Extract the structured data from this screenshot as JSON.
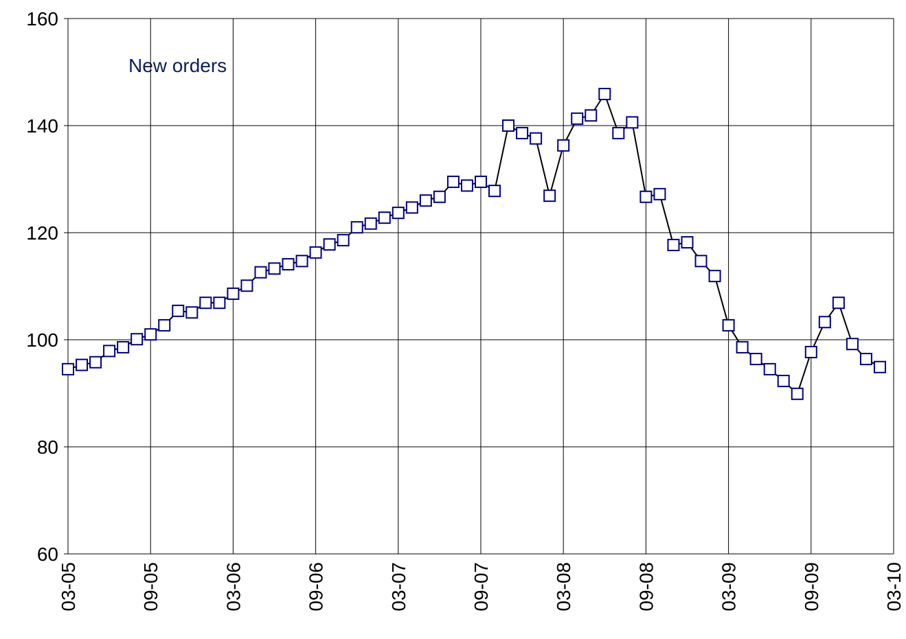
{
  "chart_data": {
    "type": "line",
    "annotation": "New orders",
    "categories": [
      "03-05",
      null,
      null,
      null,
      null,
      null,
      "09-05",
      null,
      null,
      null,
      null,
      null,
      "03-06",
      null,
      null,
      null,
      null,
      null,
      "09-06",
      null,
      null,
      null,
      null,
      null,
      "03-07",
      null,
      null,
      null,
      null,
      null,
      "09-07",
      null,
      null,
      null,
      null,
      null,
      "03-08",
      null,
      null,
      null,
      null,
      null,
      "09-08",
      null,
      null,
      null,
      null,
      null,
      "03-09",
      null,
      null,
      null,
      null,
      null,
      "09-09",
      null,
      null,
      null,
      null,
      null,
      "03-10"
    ],
    "series": [
      {
        "name": "New orders",
        "color": "#000080",
        "line_color": "#000000",
        "values": [
          94.5,
          95.3,
          95.8,
          97.9,
          98.6,
          100.1,
          101.0,
          102.7,
          105.4,
          105.1,
          106.9,
          106.9,
          108.6,
          110.1,
          112.6,
          113.3,
          114.1,
          114.7,
          116.3,
          117.8,
          118.6,
          121.0,
          121.7,
          122.8,
          123.7,
          124.7,
          126.0,
          126.7,
          129.5,
          128.8,
          129.5,
          127.8,
          140.0,
          138.6,
          137.6,
          126.9,
          136.3,
          141.3,
          141.9,
          145.9,
          138.6,
          140.6,
          126.7,
          127.2,
          117.7,
          118.2,
          114.7,
          111.9,
          102.7,
          98.6,
          96.4,
          94.5,
          92.3,
          89.9,
          97.7,
          103.3,
          106.9,
          99.2,
          96.4,
          94.9,
          null
        ]
      }
    ],
    "ylim": [
      60,
      160
    ],
    "yticks": [
      60,
      80,
      100,
      120,
      140,
      160
    ],
    "grid": true
  }
}
